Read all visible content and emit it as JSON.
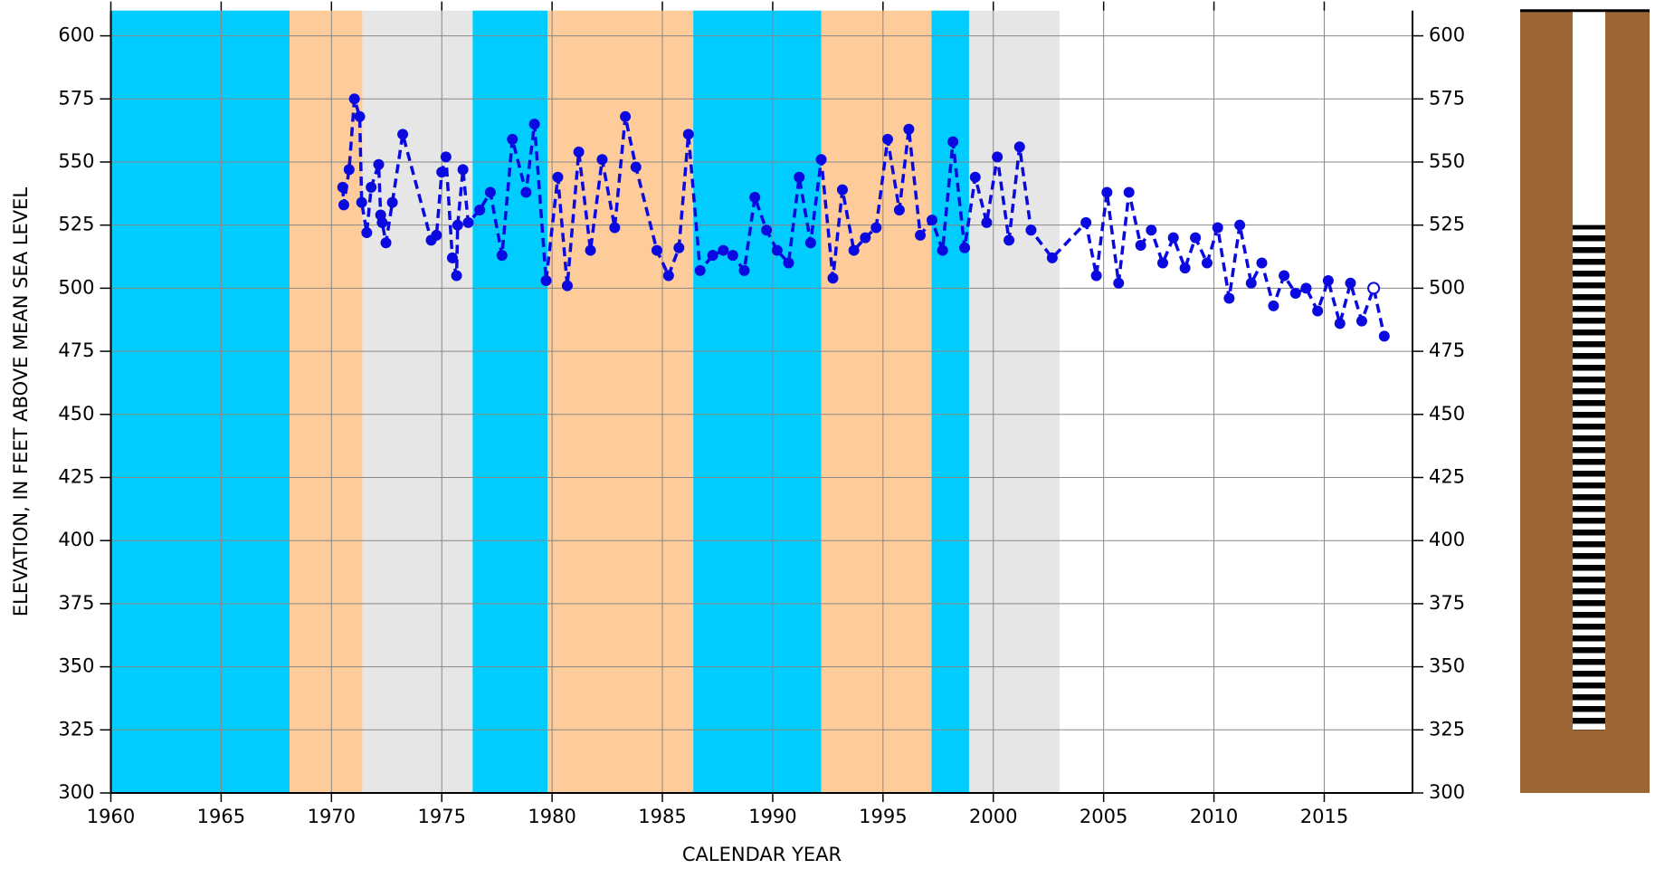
{
  "chart_data": {
    "type": "line",
    "x_label": "CALENDAR YEAR",
    "y_label": "ELEVATION, IN FEET ABOVE MEAN SEA LEVEL",
    "xlim": [
      1960,
      2019
    ],
    "xticks": [
      1960,
      1965,
      1970,
      1975,
      1980,
      1985,
      1990,
      1995,
      2000,
      2005,
      2010,
      2015
    ],
    "ylim": [
      300,
      610
    ],
    "yticks": [
      300,
      325,
      350,
      375,
      400,
      425,
      450,
      475,
      500,
      525,
      550,
      575,
      600
    ],
    "grid": true,
    "color": "#0a0ae0",
    "bands": [
      {
        "start": 1960,
        "end": 1968.1,
        "color": "#00ccff"
      },
      {
        "start": 1968.1,
        "end": 1971.4,
        "color": "#fecb9a"
      },
      {
        "start": 1971.4,
        "end": 1976.4,
        "color": "#e6e6e6"
      },
      {
        "start": 1976.4,
        "end": 1979.8,
        "color": "#00ccff"
      },
      {
        "start": 1979.8,
        "end": 1986.4,
        "color": "#fecb9a"
      },
      {
        "start": 1986.4,
        "end": 1992.2,
        "color": "#00ccff"
      },
      {
        "start": 1992.2,
        "end": 1997.2,
        "color": "#fecb9a"
      },
      {
        "start": 1997.2,
        "end": 1998.9,
        "color": "#00ccff"
      },
      {
        "start": 1998.9,
        "end": 2003.0,
        "color": "#e6e6e6"
      }
    ],
    "x": [
      1970.51,
      1970.56,
      1970.8,
      1971.04,
      1971.28,
      1971.37,
      1971.6,
      1971.8,
      1972.14,
      1972.23,
      1972.3,
      1972.47,
      1972.76,
      1973.23,
      1974.52,
      1974.76,
      1975.0,
      1975.19,
      1975.48,
      1975.67,
      1975.72,
      1975.96,
      1976.2,
      1976.72,
      1977.2,
      1977.73,
      1978.2,
      1978.82,
      1979.2,
      1979.73,
      1980.26,
      1980.69,
      1981.21,
      1981.74,
      1982.27,
      1982.84,
      1983.32,
      1983.8,
      1984.75,
      1985.28,
      1985.75,
      1986.18,
      1986.71,
      1987.28,
      1987.76,
      1988.19,
      1988.71,
      1989.19,
      1989.72,
      1990.2,
      1990.72,
      1991.2,
      1991.72,
      1992.2,
      1992.73,
      1993.16,
      1993.68,
      1994.2,
      1994.69,
      1995.21,
      1995.74,
      1996.17,
      1996.69,
      1997.22,
      1997.7,
      1998.17,
      1998.7,
      1999.18,
      1999.7,
      2000.18,
      2000.71,
      2001.19,
      2001.71,
      2002.67,
      2004.2,
      2004.67,
      2005.15,
      2005.68,
      2006.15,
      2006.68,
      2007.16,
      2007.68,
      2008.16,
      2008.69,
      2009.16,
      2009.69,
      2010.17,
      2010.69,
      2011.17,
      2011.69,
      2012.17,
      2012.7,
      2013.18,
      2013.7,
      2014.18,
      2014.7,
      2015.18,
      2015.71,
      2016.19,
      2016.7,
      2017.24,
      2017.72
    ],
    "values": [
      540,
      533,
      547,
      575,
      568,
      534,
      522,
      540,
      549,
      529,
      526,
      518,
      534,
      561,
      519,
      521,
      546,
      552,
      512,
      505,
      525,
      547,
      526,
      531,
      538,
      513,
      559,
      538,
      565,
      503,
      544,
      501,
      554,
      515,
      551,
      524,
      568,
      548,
      515,
      505,
      516,
      561,
      507,
      513,
      515,
      513,
      507,
      536,
      523,
      515,
      510,
      544,
      518,
      551,
      504,
      539,
      515,
      520,
      524,
      559,
      531,
      563,
      521,
      527,
      515,
      558,
      516,
      544,
      526,
      552,
      519,
      556,
      523,
      512,
      526,
      505,
      538,
      502,
      538,
      517,
      523,
      510,
      520,
      508,
      520,
      510,
      524,
      496,
      525,
      502,
      510,
      493,
      505,
      498,
      500,
      491,
      503,
      486,
      502,
      487,
      500,
      481
    ],
    "open_points": [
      100
    ],
    "well": {
      "screen_top": 525,
      "screen_bottom": 325
    }
  }
}
